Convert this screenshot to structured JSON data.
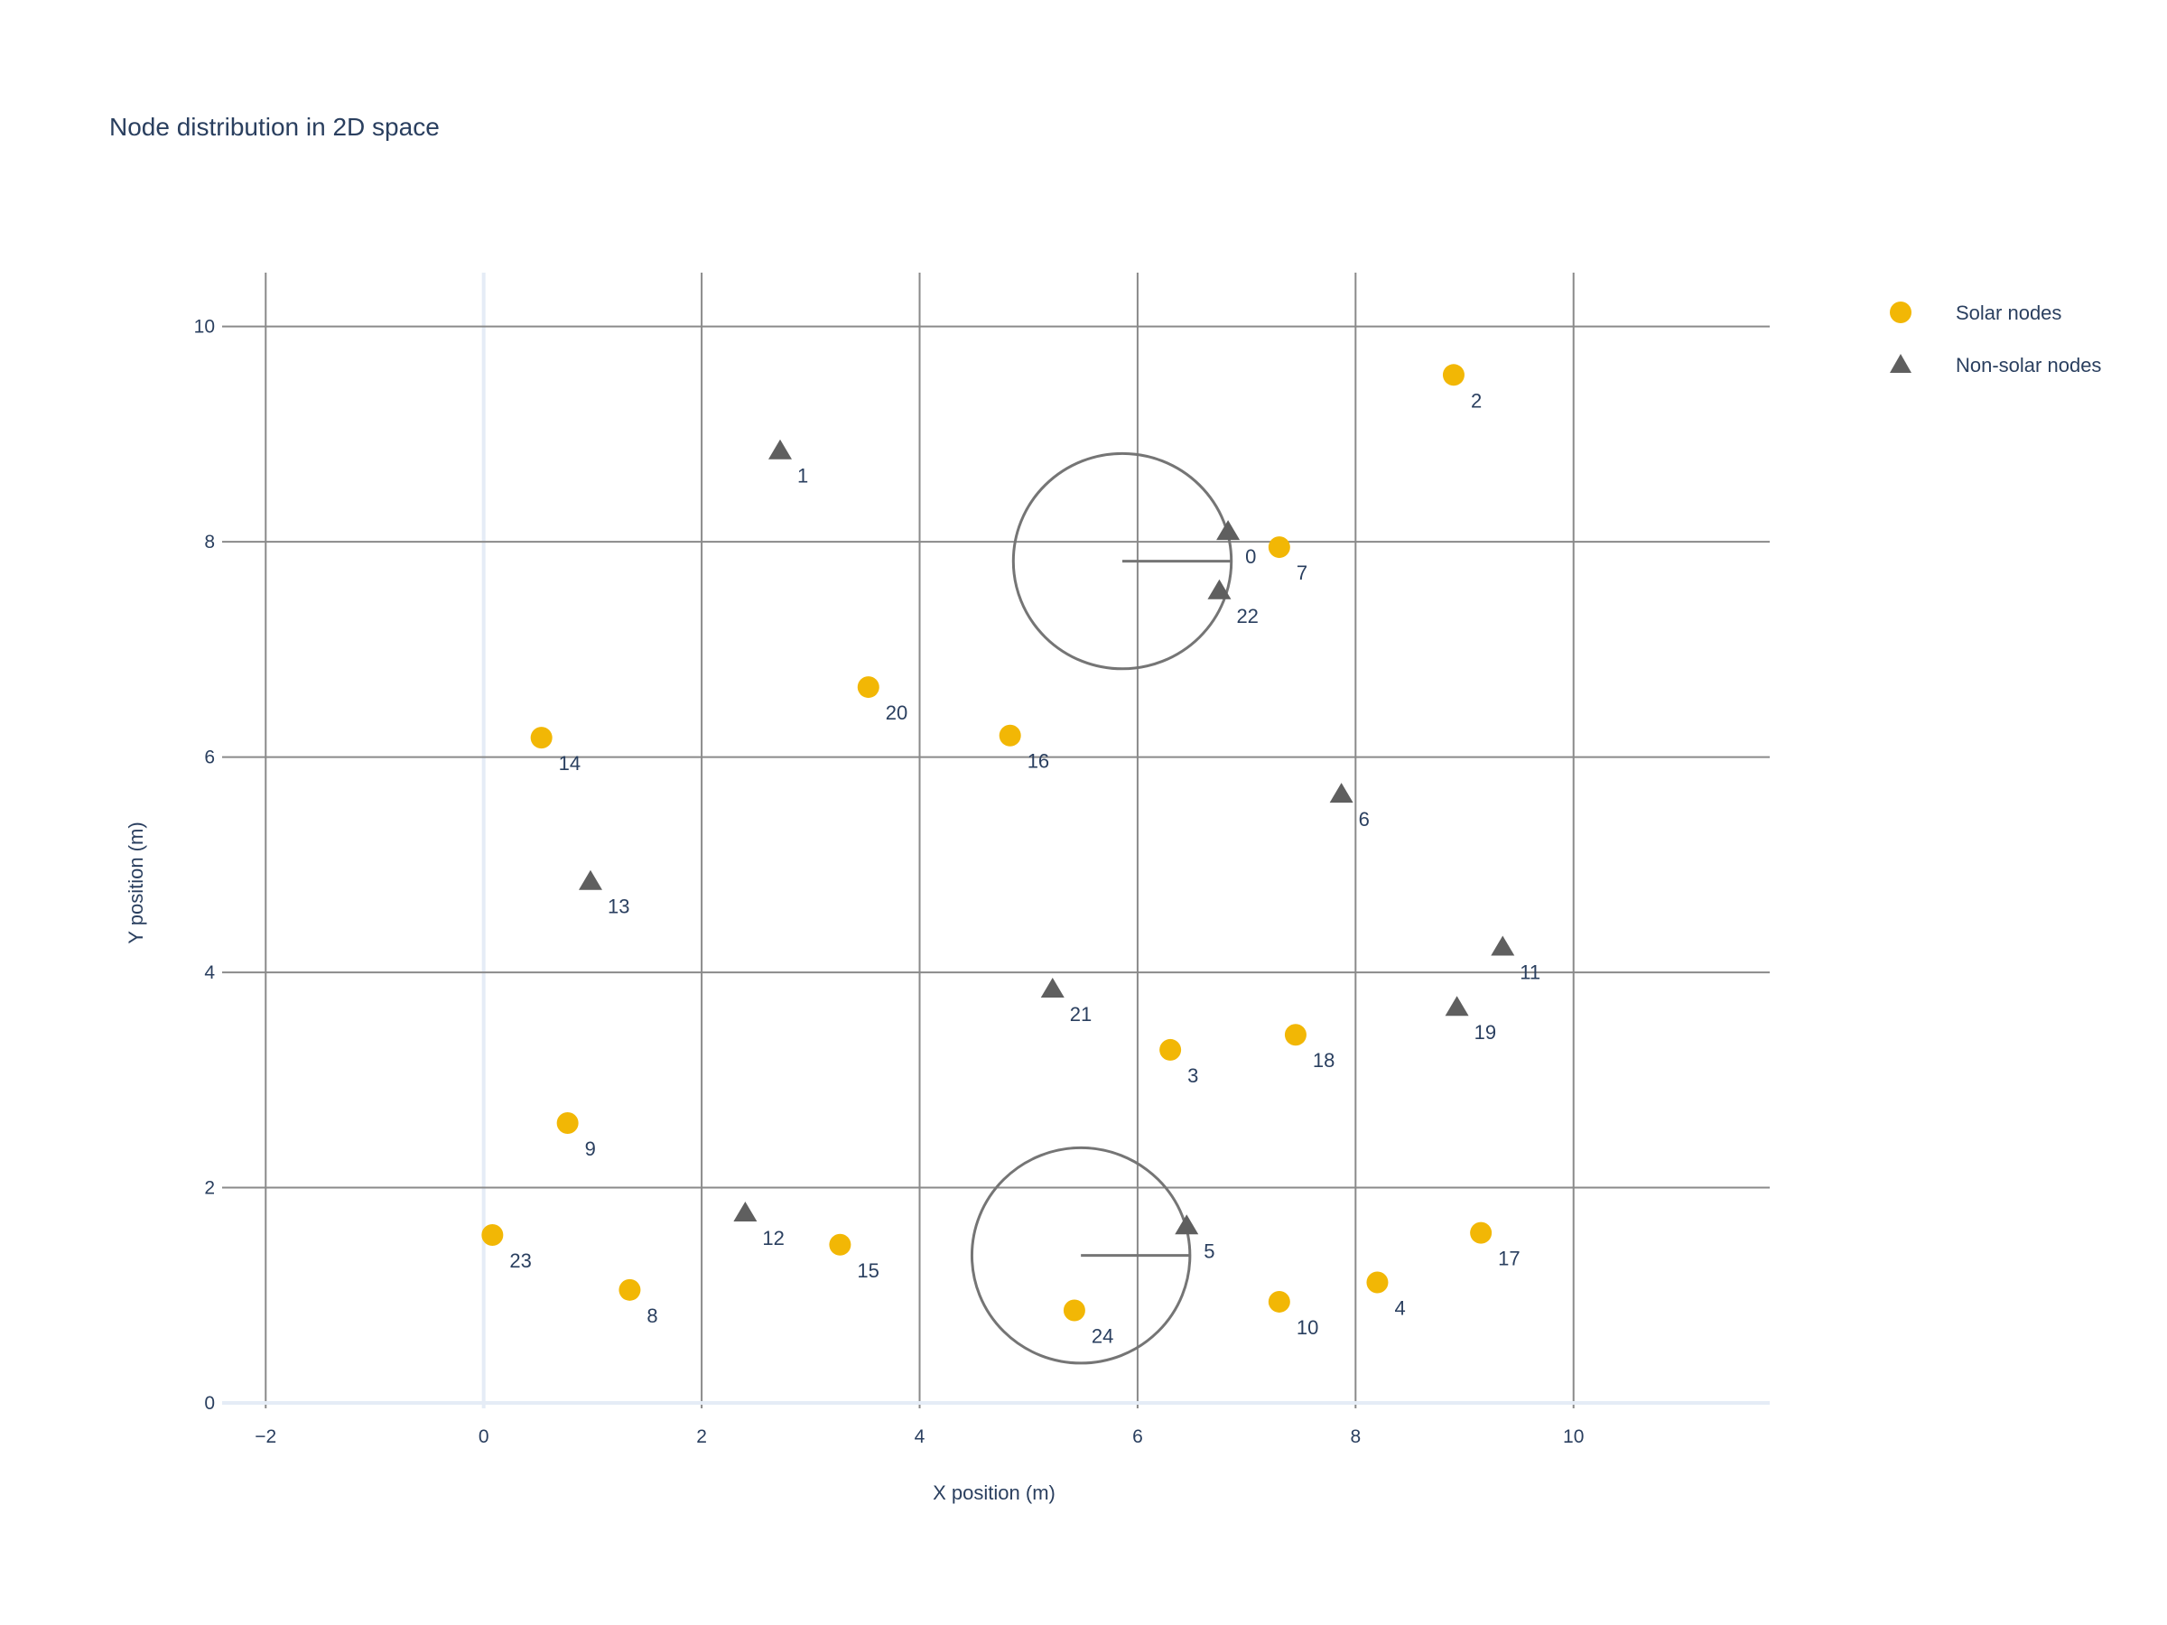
{
  "chart_data": {
    "type": "scatter",
    "title": "Node distribution in 2D space",
    "xlabel": "X position (m)",
    "ylabel": "Y position (m)",
    "xlim": [
      -2.4,
      11.8
    ],
    "ylim": [
      -0.05,
      10.5
    ],
    "xticks": [
      -2,
      0,
      2,
      4,
      6,
      8,
      10
    ],
    "yticks": [
      0,
      2,
      4,
      6,
      8,
      10
    ],
    "xtick_labels": [
      "−2",
      "0",
      "2",
      "4",
      "6",
      "8",
      "10"
    ],
    "ytick_labels": [
      "0",
      "2",
      "4",
      "6",
      "8",
      "10"
    ],
    "grid": true,
    "legend_position": "top-right",
    "series": [
      {
        "name": "Solar nodes",
        "marker": "circle",
        "color": "#f2b705",
        "points": [
          {
            "label": "2",
            "x": 8.9,
            "y": 9.55
          },
          {
            "label": "7",
            "x": 7.3,
            "y": 7.95
          },
          {
            "label": "20",
            "x": 3.53,
            "y": 6.65
          },
          {
            "label": "16",
            "x": 4.83,
            "y": 6.2
          },
          {
            "label": "14",
            "x": 0.53,
            "y": 6.18
          },
          {
            "label": "3",
            "x": 6.3,
            "y": 3.28
          },
          {
            "label": "18",
            "x": 7.45,
            "y": 3.42
          },
          {
            "label": "9",
            "x": 0.77,
            "y": 2.6
          },
          {
            "label": "23",
            "x": 0.08,
            "y": 1.56
          },
          {
            "label": "8",
            "x": 1.34,
            "y": 1.05
          },
          {
            "label": "15",
            "x": 3.27,
            "y": 1.47
          },
          {
            "label": "24",
            "x": 5.42,
            "y": 0.86
          },
          {
            "label": "10",
            "x": 7.3,
            "y": 0.94
          },
          {
            "label": "4",
            "x": 8.2,
            "y": 1.12
          },
          {
            "label": "17",
            "x": 9.15,
            "y": 1.58
          }
        ]
      },
      {
        "name": "Non-solar nodes",
        "marker": "triangle-up",
        "color": "#5f5f5f",
        "points": [
          {
            "label": "1",
            "x": 2.72,
            "y": 8.85
          },
          {
            "label": "0",
            "x": 6.83,
            "y": 8.1
          },
          {
            "label": "22",
            "x": 6.75,
            "y": 7.55
          },
          {
            "label": "6",
            "x": 7.87,
            "y": 5.66
          },
          {
            "label": "13",
            "x": 0.98,
            "y": 4.85
          },
          {
            "label": "11",
            "x": 9.35,
            "y": 4.24
          },
          {
            "label": "19",
            "x": 8.93,
            "y": 3.68
          },
          {
            "label": "21",
            "x": 5.22,
            "y": 3.85
          },
          {
            "label": "12",
            "x": 2.4,
            "y": 1.77
          },
          {
            "label": "5",
            "x": 6.45,
            "y": 1.65
          }
        ]
      }
    ],
    "circles": [
      {
        "cx": 5.86,
        "cy": 7.82,
        "r": 1.0
      },
      {
        "cx": 5.48,
        "cy": 1.37,
        "r": 1.0
      }
    ]
  }
}
